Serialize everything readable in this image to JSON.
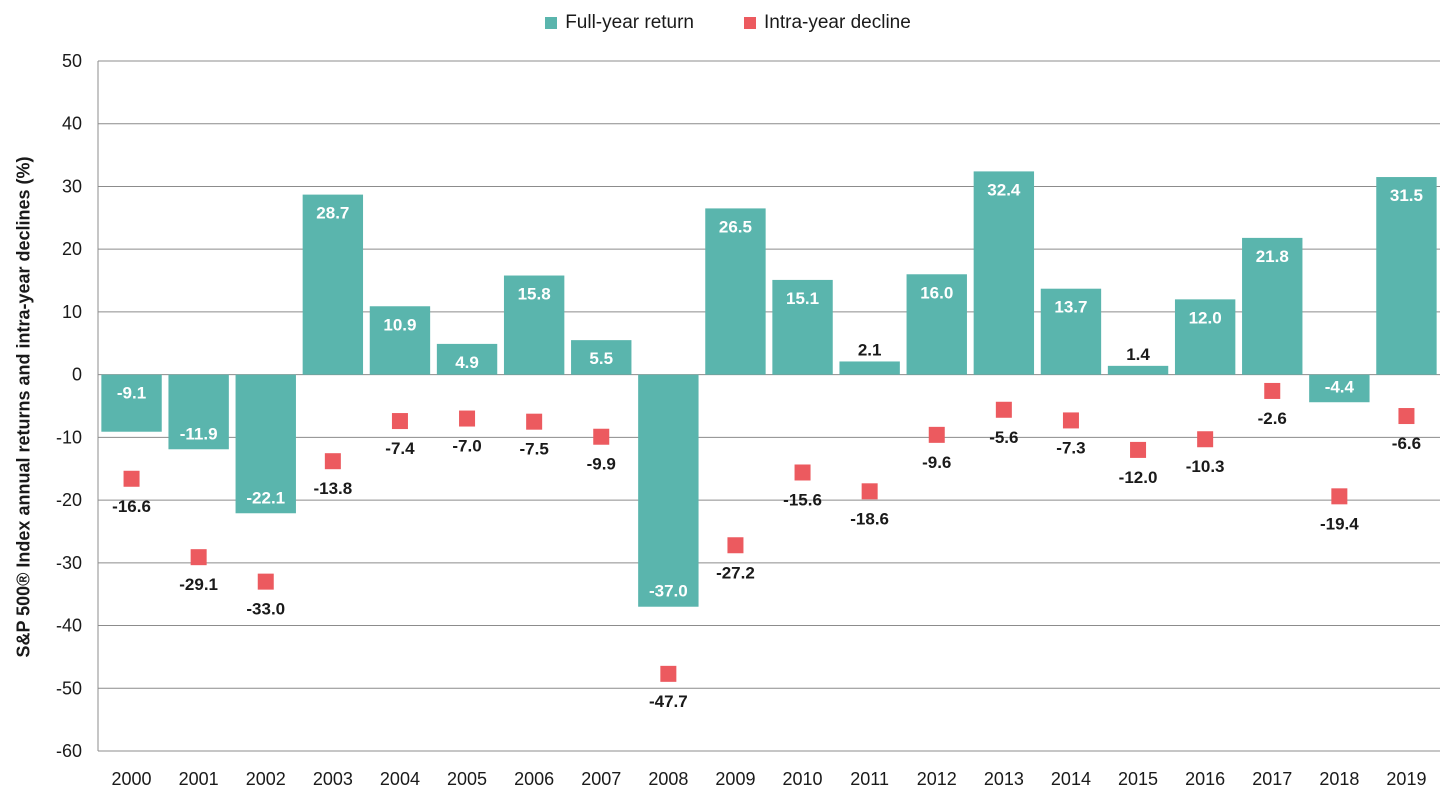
{
  "chart_data": {
    "type": "bar",
    "ylabel": "S&P 500® Index annual returns and intra-year declines (%)",
    "xlabel": "",
    "ylim": [
      -60,
      50
    ],
    "yticks": [
      50,
      40,
      30,
      20,
      10,
      0,
      -10,
      -20,
      -30,
      -40,
      -50,
      -60
    ],
    "grid": true,
    "legend_position": "top-center",
    "categories": [
      "2000",
      "2001",
      "2002",
      "2003",
      "2004",
      "2005",
      "2006",
      "2007",
      "2008",
      "2009",
      "2010",
      "2011",
      "2012",
      "2013",
      "2014",
      "2015",
      "2016",
      "2017",
      "2018",
      "2019"
    ],
    "series": [
      {
        "name": "Full-year return",
        "type": "bar",
        "color": "#5ab5ad",
        "values": [
          -9.1,
          -11.9,
          -22.1,
          28.7,
          10.9,
          4.9,
          15.8,
          5.5,
          -37.0,
          26.5,
          15.1,
          2.1,
          16.0,
          32.4,
          13.7,
          1.4,
          12.0,
          21.8,
          -4.4,
          31.5
        ],
        "labels": [
          "-9.1",
          "-11.9",
          "-22.1",
          "28.7",
          "10.9",
          "4.9",
          "15.8",
          "5.5",
          "-37.0",
          "26.5",
          "15.1",
          "2.1",
          "16.0",
          "32.4",
          "13.7",
          "1.4",
          "12.0",
          "21.8",
          "-4.4",
          "31.5"
        ]
      },
      {
        "name": "Intra-year decline",
        "type": "scatter",
        "color": "#ec5a5f",
        "values": [
          -16.6,
          -29.1,
          -33.0,
          -13.8,
          -7.4,
          -7.0,
          -7.5,
          -9.9,
          -47.7,
          -27.2,
          -15.6,
          -18.6,
          -9.6,
          -5.6,
          -7.3,
          -12.0,
          -10.3,
          -2.6,
          -19.4,
          -6.6
        ],
        "labels": [
          "-16.6",
          "-29.1",
          "-33.0",
          "-13.8",
          "-7.4",
          "-7.0",
          "-7.5",
          "-9.9",
          "-47.7",
          "-27.2",
          "-15.6",
          "-18.6",
          "-9.6",
          "-5.6",
          "-7.3",
          "-12.0",
          "-10.3",
          "-2.6",
          "-19.4",
          "-6.6"
        ]
      }
    ]
  }
}
